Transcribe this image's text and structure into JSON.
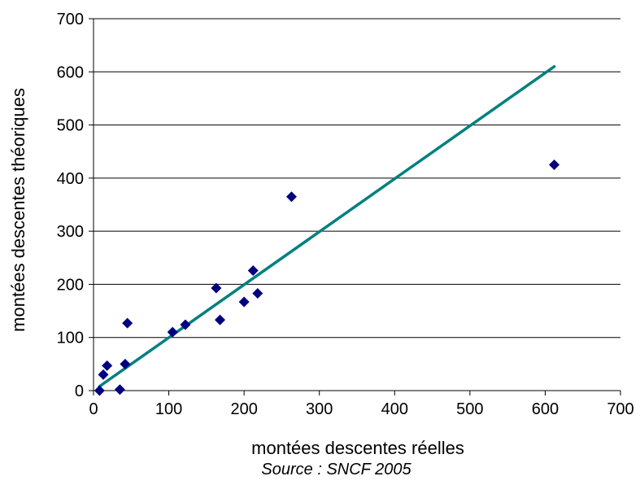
{
  "chart_data": {
    "type": "scatter",
    "xlabel": "montées descentes réelles",
    "ylabel": "montées descentes théoriques",
    "xlim": [
      0,
      700
    ],
    "ylim": [
      0,
      700
    ],
    "xticks": [
      0,
      100,
      200,
      300,
      400,
      500,
      600,
      700
    ],
    "yticks": [
      0,
      100,
      200,
      300,
      400,
      500,
      600,
      700
    ],
    "grid": "horizontal",
    "colors": {
      "points": "#000080",
      "trendline": "#008080",
      "grid": "#000000"
    },
    "series": [
      {
        "marker": "diamond",
        "points": [
          {
            "x": 8,
            "y": 0
          },
          {
            "x": 13,
            "y": 30
          },
          {
            "x": 18,
            "y": 47
          },
          {
            "x": 35,
            "y": 2
          },
          {
            "x": 42,
            "y": 50
          },
          {
            "x": 45,
            "y": 127
          },
          {
            "x": 105,
            "y": 110
          },
          {
            "x": 122,
            "y": 124
          },
          {
            "x": 163,
            "y": 193
          },
          {
            "x": 168,
            "y": 133
          },
          {
            "x": 200,
            "y": 167
          },
          {
            "x": 212,
            "y": 226
          },
          {
            "x": 218,
            "y": 183
          },
          {
            "x": 263,
            "y": 365
          },
          {
            "x": 612,
            "y": 425
          }
        ]
      }
    ],
    "trendline": {
      "x": [
        8,
        612
      ],
      "y": [
        8,
        610
      ]
    }
  },
  "source": "Source : SNCF 2005"
}
